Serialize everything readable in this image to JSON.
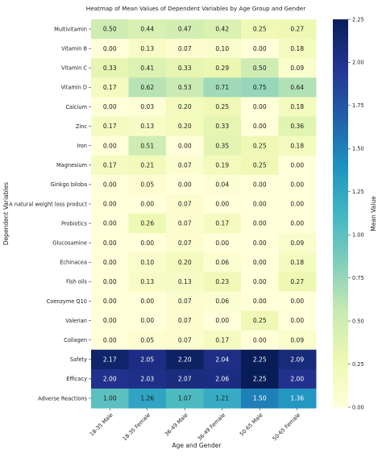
{
  "chart_data": {
    "type": "heatmap",
    "title": "Heatmap of Mean Values of Dependent Variables by Age Group and Gender",
    "xlabel": "Age and Gender",
    "ylabel": "Dependent Variables",
    "x_categories": [
      "18-35 Male",
      "18-35 Female",
      "36-49 Male",
      "36-49 Female",
      "50-65 Male",
      "50-65 Female"
    ],
    "y_categories": [
      "Multivitamin",
      "Vitamin B",
      "Vitamin C",
      "Vitamin D",
      "Calcium",
      "Zinc",
      "Iron",
      "Magnesium",
      "Ginkgo biloba",
      "A natural weight loss product",
      "Probiotics",
      "Glucosamine",
      "Echinacea",
      "Fish oils",
      "Coenzyme Q10",
      "Valerian",
      "Collagen",
      "Safety",
      "Efficacy",
      "Adverse Reactions"
    ],
    "values": [
      [
        0.5,
        0.44,
        0.47,
        0.42,
        0.25,
        0.27
      ],
      [
        0.0,
        0.13,
        0.07,
        0.1,
        0.0,
        0.18
      ],
      [
        0.33,
        0.41,
        0.33,
        0.29,
        0.5,
        0.09
      ],
      [
        0.17,
        0.62,
        0.53,
        0.71,
        0.75,
        0.64
      ],
      [
        0.0,
        0.03,
        0.2,
        0.25,
        0.0,
        0.18
      ],
      [
        0.17,
        0.13,
        0.2,
        0.33,
        0.0,
        0.36
      ],
      [
        0.0,
        0.51,
        0.0,
        0.35,
        0.25,
        0.18
      ],
      [
        0.17,
        0.21,
        0.07,
        0.19,
        0.25,
        0.0
      ],
      [
        0.0,
        0.05,
        0.0,
        0.04,
        0.0,
        0.0
      ],
      [
        0.0,
        0.0,
        0.07,
        0.0,
        0.0,
        0.0
      ],
      [
        0.0,
        0.26,
        0.07,
        0.17,
        0.0,
        0.0
      ],
      [
        0.0,
        0.0,
        0.07,
        0.0,
        0.0,
        0.09
      ],
      [
        0.0,
        0.1,
        0.2,
        0.06,
        0.0,
        0.18
      ],
      [
        0.0,
        0.13,
        0.13,
        0.23,
        0.0,
        0.27
      ],
      [
        0.0,
        0.0,
        0.07,
        0.06,
        0.0,
        0.0
      ],
      [
        0.0,
        0.0,
        0.07,
        0.0,
        0.25,
        0.0
      ],
      [
        0.0,
        0.05,
        0.07,
        0.17,
        0.0,
        0.09
      ],
      [
        2.17,
        2.05,
        2.2,
        2.04,
        2.25,
        2.09
      ],
      [
        2.0,
        2.03,
        2.07,
        2.06,
        2.25,
        2.0
      ],
      [
        1.0,
        1.26,
        1.07,
        1.21,
        1.5,
        1.36
      ]
    ],
    "colorbar": {
      "label": "Mean Value",
      "range": [
        0,
        2.25
      ],
      "ticks": [
        "0.00",
        "0.25",
        "0.50",
        "0.75",
        "1.00",
        "1.25",
        "1.50",
        "1.75",
        "2.00",
        "2.25"
      ]
    },
    "colormap": "YlGnBu",
    "colormap_stops": [
      "#ffffd9",
      "#edf8b1",
      "#c7e9b4",
      "#7fcdbb",
      "#41b6c4",
      "#1d91c0",
      "#225ea8",
      "#253494",
      "#081d58"
    ]
  }
}
